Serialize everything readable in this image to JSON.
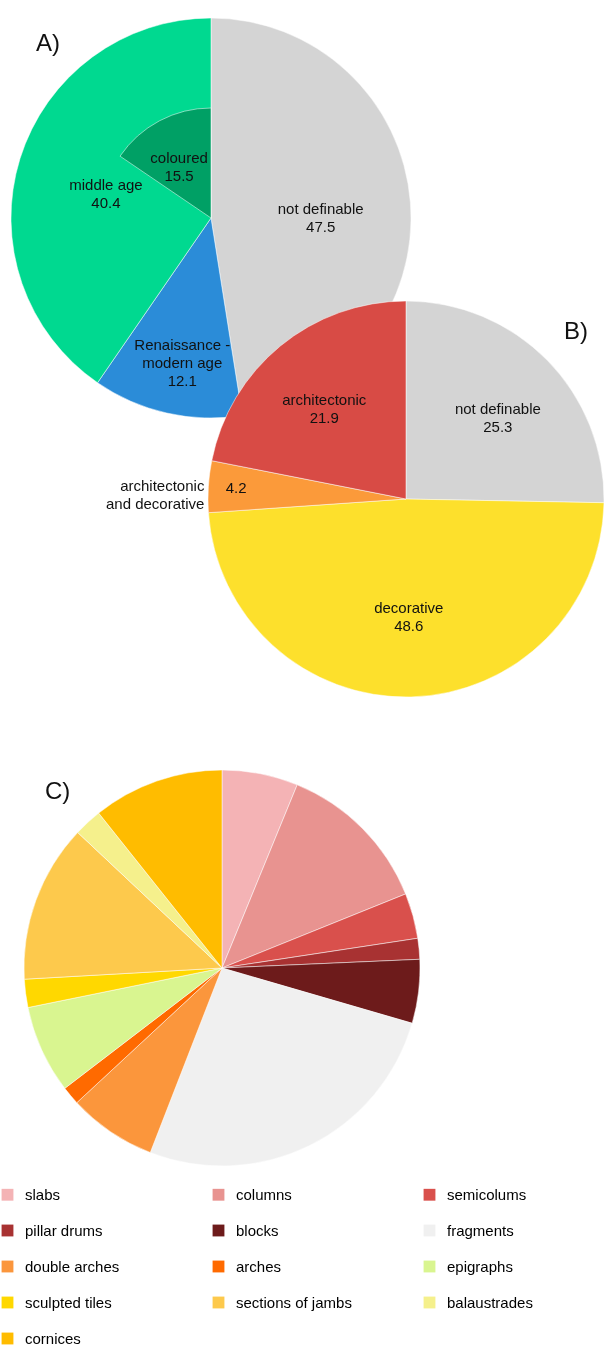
{
  "chart_data": [
    {
      "type": "pie",
      "title": "A)",
      "categories": [
        "not definable",
        "Renaissance - modern age",
        "middle age"
      ],
      "data_labels": true,
      "series": [
        {
          "colors": [
            "#d4d4d4",
            "#2b8cd8",
            "#00d990"
          ],
          "values": [
            47.5,
            12.1,
            40.4
          ]
        },
        {
          "name": "coloured",
          "color": "#00a065",
          "values": [
            null,
            null,
            15.5
          ]
        }
      ]
    },
    {
      "type": "pie",
      "title": "B)",
      "categories": [
        "not definable",
        "decorative",
        "architectonic and decorative",
        "architectonic"
      ],
      "values": [
        25.3,
        48.6,
        4.2,
        21.9
      ],
      "colors": [
        "#d4d4d4",
        "#fde02c",
        "#fb9a3a",
        "#d84b45"
      ],
      "data_labels": true
    },
    {
      "type": "pie",
      "title": "C)",
      "categories": [
        "slabs",
        "columns",
        "semicolums",
        "pillar drums",
        "blocks",
        "fragments",
        "double arches",
        "arches",
        "epigraphs",
        "sculpted tiles",
        "sections of jambs",
        "balaustrades",
        "cornices"
      ],
      "values": [
        6.2,
        12.7,
        3.7,
        1.7,
        5.2,
        26.4,
        7.2,
        1.5,
        7.2,
        2.3,
        12.9,
        2.3,
        10.7
      ],
      "colors": [
        "#f4b3b5",
        "#e89390",
        "#d9504c",
        "#a83232",
        "#6d1b1b",
        "#f0f0f0",
        "#fb963c",
        "#ff6a00",
        "#d9f590",
        "#ffd800",
        "#fdc94c",
        "#f5f08c",
        "#ffbc00"
      ],
      "legend": "bottom"
    }
  ]
}
